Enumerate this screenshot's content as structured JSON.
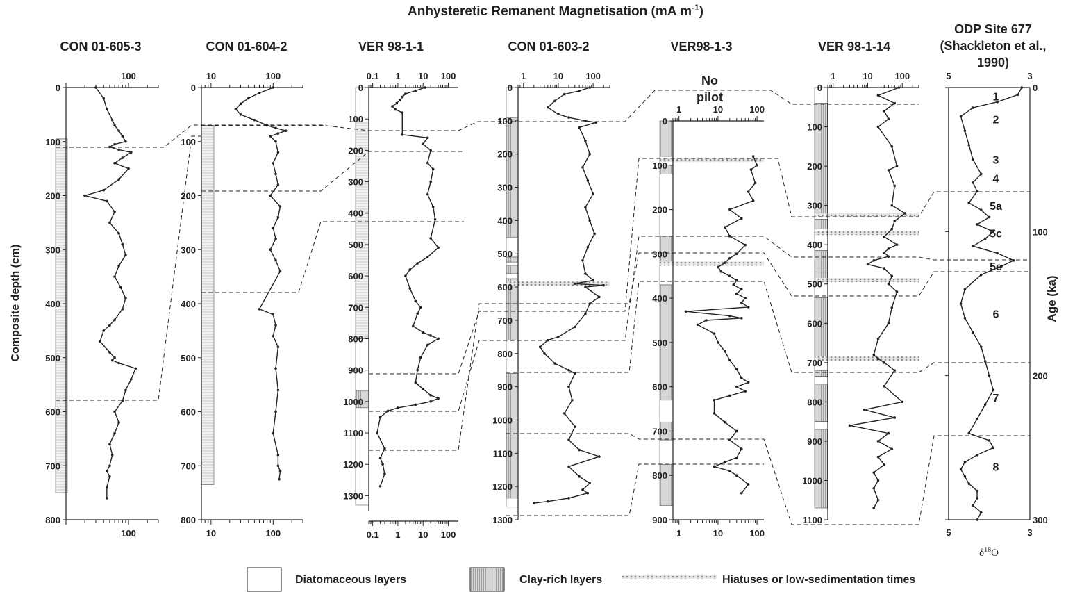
{
  "figure": {
    "main_title": "Anhysteretic Remanent Magnetisation (mA m",
    "main_title_sup": "-1",
    "main_title_end": ")",
    "y_axis_label": "Composite depth (cm)",
    "age_axis_label": "Age (ka)",
    "d18o_label": "δ",
    "d18o_sup": "18",
    "d18o_end": "O",
    "no_pilot_line1": "No",
    "no_pilot_line2": "pilot"
  },
  "legend": {
    "diatom_label": "Diatomaceous layers",
    "clay_label": "Clay-rich layers",
    "hiatus_label": "Hiatuses or low-sedimentation times"
  },
  "colors": {
    "ink": "#222222",
    "clay": "#8a8a8a",
    "hiatus": "#9a9a9a",
    "box": "#ffffff"
  },
  "chart_data": [
    {
      "type": "line",
      "title": "CON 01-605-3",
      "xscale": "log",
      "x_ticks": [
        "100"
      ],
      "x_tick_values": [
        100
      ],
      "y_ticks": [
        "0",
        "100",
        "200",
        "300",
        "400",
        "500",
        "600",
        "700",
        "800"
      ],
      "ylim": [
        0,
        800
      ],
      "xlim": [
        10,
        300
      ],
      "series": [
        {
          "x": [
            30,
            40,
            45,
            55,
            60,
            70,
            80,
            90,
            60,
            50,
            70,
            110,
            80,
            60,
            100,
            70,
            40,
            20,
            45,
            60,
            50,
            70,
            80,
            90,
            70,
            60,
            75,
            90,
            80,
            60,
            50,
            40,
            35,
            50,
            60,
            55,
            70,
            130,
            110,
            90,
            80,
            60,
            70,
            60,
            50,
            55,
            50,
            45,
            50,
            45,
            45
          ],
          "y": [
            0,
            20,
            40,
            60,
            70,
            80,
            90,
            100,
            105,
            110,
            115,
            120,
            130,
            140,
            150,
            170,
            190,
            200,
            210,
            230,
            250,
            270,
            290,
            310,
            330,
            350,
            370,
            390,
            410,
            430,
            440,
            450,
            470,
            490,
            500,
            505,
            510,
            520,
            540,
            560,
            580,
            600,
            620,
            640,
            660,
            680,
            700,
            710,
            720,
            740,
            760
          ]
        }
      ]
    },
    {
      "type": "line",
      "title": "CON 01-604-2",
      "xscale": "log",
      "x_ticks": [
        "10",
        "100"
      ],
      "x_tick_values": [
        10,
        100
      ],
      "y_ticks": [
        "0",
        "100",
        "200",
        "300",
        "400",
        "500",
        "600",
        "700",
        "800"
      ],
      "ylim": [
        0,
        800
      ],
      "xlim": [
        7,
        300
      ],
      "series": [
        {
          "x": [
            100,
            60,
            40,
            30,
            25,
            30,
            50,
            80,
            110,
            160,
            120,
            90,
            110,
            120,
            100,
            110,
            120,
            90,
            130,
            120,
            100,
            110,
            90,
            110,
            130,
            60,
            100,
            110,
            100,
            120,
            110,
            120,
            110,
            100,
            120,
            120,
            130,
            125
          ],
          "y": [
            0,
            10,
            20,
            30,
            40,
            50,
            60,
            70,
            75,
            80,
            85,
            90,
            100,
            120,
            140,
            160,
            180,
            200,
            220,
            240,
            260,
            280,
            300,
            320,
            340,
            410,
            420,
            440,
            460,
            480,
            520,
            560,
            600,
            640,
            680,
            700,
            710,
            725
          ]
        }
      ]
    },
    {
      "type": "line",
      "title": "VER 98-1-1",
      "xscale": "log",
      "x_ticks": [
        "0.1",
        "1",
        "10",
        "100"
      ],
      "x_tick_values": [
        0.1,
        1,
        10,
        100
      ],
      "y_ticks": [
        "0",
        "100",
        "200",
        "300",
        "400",
        "500",
        "600",
        "700",
        "800",
        "900",
        "1000",
        "1100",
        "1200",
        "1300"
      ],
      "ylim": [
        0,
        1350
      ],
      "xlim": [
        0.07,
        250
      ],
      "series": [
        {
          "x": [
            12,
            5,
            2,
            1.5,
            1.2,
            0.9,
            0.6,
            0.8,
            1.5,
            1.5,
            15,
            10,
            20,
            15,
            25,
            20,
            15,
            25,
            30,
            20,
            40,
            15,
            6,
            3,
            2,
            3,
            5,
            8,
            6,
            4,
            10,
            20,
            40,
            15,
            8,
            6,
            5,
            10,
            20,
            40,
            20,
            5,
            1,
            0.4,
            0.2,
            0.15,
            0.3,
            0.2,
            0.25,
            0.3,
            0.2
          ],
          "y": [
            0,
            10,
            20,
            30,
            40,
            50,
            60,
            70,
            80,
            150,
            160,
            180,
            200,
            240,
            260,
            300,
            340,
            380,
            420,
            480,
            510,
            540,
            560,
            580,
            600,
            640,
            680,
            700,
            720,
            760,
            780,
            790,
            800,
            820,
            860,
            900,
            940,
            960,
            980,
            990,
            1000,
            1010,
            1020,
            1030,
            1050,
            1100,
            1150,
            1180,
            1200,
            1230,
            1270
          ]
        }
      ]
    },
    {
      "type": "line",
      "title": "CON 01-603-2",
      "xscale": "log",
      "x_ticks": [
        "1",
        "10",
        "100"
      ],
      "x_tick_values": [
        1,
        10,
        100
      ],
      "y_ticks": [
        "0",
        "100",
        "200",
        "300",
        "400",
        "500",
        "600",
        "700",
        "800",
        "900",
        "1000",
        "1100",
        "1200",
        "1300"
      ],
      "ylim": [
        0,
        1300
      ],
      "xlim": [
        0.7,
        300
      ],
      "series": [
        {
          "x": [
            80,
            40,
            15,
            8,
            5,
            10,
            20,
            60,
            120,
            40,
            60,
            80,
            50,
            70,
            100,
            60,
            80,
            110,
            70,
            50,
            60,
            100,
            30,
            200,
            60,
            150,
            80,
            60,
            30,
            10,
            5,
            3,
            4,
            8,
            20,
            30,
            20,
            25,
            15,
            30,
            20,
            40,
            150,
            20,
            40,
            80,
            50,
            70,
            20,
            5,
            2
          ],
          "y": [
            0,
            10,
            20,
            40,
            60,
            80,
            90,
            100,
            105,
            120,
            160,
            200,
            240,
            280,
            320,
            360,
            400,
            440,
            480,
            520,
            560,
            580,
            590,
            595,
            600,
            630,
            650,
            680,
            720,
            750,
            760,
            780,
            800,
            830,
            850,
            860,
            900,
            940,
            980,
            1020,
            1060,
            1090,
            1110,
            1140,
            1170,
            1190,
            1210,
            1220,
            1235,
            1245,
            1250
          ]
        }
      ]
    },
    {
      "type": "line",
      "title": "VER98-1-3",
      "xscale": "log",
      "x_ticks": [
        "1",
        "10",
        "100"
      ],
      "x_tick_values": [
        1,
        10,
        100
      ],
      "y_ticks": [
        "0",
        "100",
        "200",
        "300",
        "400",
        "500",
        "600",
        "700",
        "800",
        "900"
      ],
      "ylim": [
        0,
        900
      ],
      "xlim": [
        0.7,
        150
      ],
      "series": [
        {
          "x": [
            80,
            100,
            70,
            90,
            60,
            80,
            20,
            40,
            15,
            20,
            50,
            30,
            20,
            15,
            10,
            12,
            20,
            30,
            25,
            40,
            30,
            50,
            40,
            60,
            1.5,
            20,
            40,
            5,
            3,
            8,
            10,
            15,
            20,
            30,
            40,
            60,
            30,
            50,
            20,
            8,
            8,
            15,
            30,
            20,
            40,
            30,
            15,
            8,
            20,
            30,
            60,
            40
          ],
          "y": [
            80,
            100,
            110,
            140,
            160,
            180,
            200,
            220,
            240,
            260,
            280,
            300,
            310,
            320,
            330,
            340,
            350,
            360,
            370,
            380,
            390,
            400,
            410,
            420,
            430,
            440,
            445,
            450,
            460,
            480,
            500,
            520,
            540,
            560,
            580,
            590,
            600,
            610,
            620,
            630,
            660,
            680,
            700,
            720,
            740,
            760,
            770,
            780,
            790,
            800,
            820,
            840
          ]
        }
      ]
    },
    {
      "type": "line",
      "title": "VER 98-1-14",
      "xscale": "log",
      "x_ticks": [
        "1",
        "10",
        "100"
      ],
      "x_tick_values": [
        1,
        10,
        100
      ],
      "y_ticks": [
        "0",
        "100",
        "200",
        "300",
        "400",
        "500",
        "600",
        "700",
        "800",
        "900",
        "1000",
        "1100"
      ],
      "ylim": [
        0,
        1100
      ],
      "xlim": [
        0.7,
        300
      ],
      "series": [
        {
          "x": [
            80,
            20,
            60,
            30,
            40,
            20,
            50,
            70,
            40,
            60,
            50,
            120,
            60,
            50,
            30,
            70,
            40,
            30,
            40,
            15,
            10,
            30,
            50,
            40,
            70,
            50,
            40,
            20,
            15,
            20,
            30,
            60,
            30,
            100,
            8,
            60,
            3,
            40,
            20,
            50,
            20,
            30,
            15,
            20,
            15,
            20,
            15
          ],
          "y": [
            0,
            20,
            40,
            60,
            80,
            100,
            150,
            200,
            210,
            250,
            300,
            320,
            340,
            360,
            380,
            400,
            410,
            420,
            430,
            440,
            450,
            460,
            480,
            500,
            520,
            560,
            600,
            640,
            680,
            690,
            700,
            720,
            760,
            800,
            820,
            840,
            860,
            880,
            900,
            920,
            940,
            960,
            980,
            1000,
            1020,
            1050,
            1070
          ]
        }
      ]
    },
    {
      "type": "line",
      "title": "ODP Site 677",
      "title_line2": "(Shackleton et al.,",
      "title_line3": "1990)",
      "xlabel_ticks": [
        "5",
        "3"
      ],
      "x_tick_values": [
        5,
        3
      ],
      "xlim": [
        5,
        3
      ],
      "y_ticks": [
        "0",
        "100",
        "200",
        "300"
      ],
      "ylim": [
        0,
        300
      ],
      "ylabel": "Age (ka)",
      "stages": [
        "1",
        "2",
        "3",
        "4",
        "5a",
        "5c",
        "5e",
        "6",
        "7",
        "8"
      ],
      "stage_ages": [
        6,
        22,
        50,
        63,
        82,
        101,
        124,
        157,
        215,
        263
      ],
      "series": [
        {
          "x": [
            3.2,
            3.3,
            3.8,
            4.4,
            4.7,
            4.6,
            4.5,
            4.4,
            4.2,
            4.4,
            4.3,
            4.5,
            4.2,
            4.0,
            4.3,
            3.9,
            4.1,
            4.4,
            3.8,
            3.4,
            3.7,
            4.2,
            4.6,
            4.7,
            4.6,
            4.4,
            4.2,
            4.1,
            4.0,
            3.9,
            4.1,
            4.3,
            4.5,
            4.0,
            3.9,
            4.3,
            4.6,
            4.7,
            4.6,
            4.5,
            4.3,
            4.3,
            4.4,
            4.2,
            4.3
          ],
          "y": [
            0,
            5,
            10,
            14,
            20,
            30,
            40,
            50,
            60,
            66,
            72,
            80,
            85,
            90,
            95,
            100,
            105,
            110,
            115,
            120,
            124,
            130,
            140,
            150,
            160,
            170,
            180,
            190,
            200,
            210,
            220,
            230,
            240,
            245,
            250,
            255,
            260,
            265,
            270,
            275,
            280,
            285,
            290,
            295,
            300
          ]
        }
      ]
    }
  ]
}
